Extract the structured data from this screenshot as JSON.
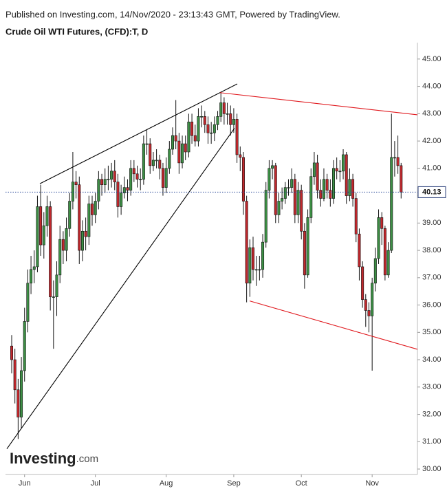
{
  "chart_data": {
    "type": "candlestick",
    "published": "Published on Investing.com, 14/Nov/2020 - 23:13:43 GMT, Powered by TradingView.",
    "title": "Crude Oil WTI Futures, (CFD):T, D",
    "logo_text": "Investing",
    "logo_suffix": ".com",
    "categories": [
      null,
      null,
      null,
      null,
      "Jun",
      null,
      null,
      null,
      null,
      null,
      null,
      null,
      null,
      null,
      null,
      null,
      null,
      null,
      null,
      null,
      null,
      null,
      null,
      null,
      null,
      null,
      "Jul",
      null,
      null,
      null,
      null,
      null,
      null,
      null,
      null,
      null,
      null,
      null,
      null,
      null,
      null,
      null,
      null,
      null,
      null,
      null,
      null,
      null,
      "Aug",
      null,
      null,
      null,
      null,
      null,
      null,
      null,
      null,
      null,
      null,
      null,
      null,
      null,
      null,
      null,
      null,
      null,
      null,
      null,
      null,
      "Sep",
      null,
      null,
      null,
      null,
      null,
      null,
      null,
      null,
      null,
      null,
      null,
      null,
      null,
      null,
      null,
      null,
      null,
      null,
      null,
      null,
      "Oct",
      null,
      null,
      null,
      null,
      null,
      null,
      null,
      null,
      null,
      null,
      null,
      null,
      null,
      null,
      null,
      null,
      null,
      null,
      null,
      null,
      null,
      "Nov",
      null,
      null,
      null,
      null,
      null,
      null,
      null,
      null,
      null
    ],
    "open": [
      34.5,
      34.0,
      32.9,
      31.9,
      33.6,
      35.4,
      36.8,
      37.3,
      37.4,
      39.6,
      38.2,
      38.9,
      39.6,
      36.3,
      36.3,
      37.1,
      38.4,
      38.0,
      38.8,
      39.8,
      40.5,
      40.4,
      38.0,
      38.7,
      38.5,
      39.7,
      39.3,
      39.8,
      40.6,
      40.4,
      40.6,
      40.6,
      40.9,
      40.5,
      39.6,
      40.1,
      40.3,
      40.2,
      41.0,
      40.8,
      40.6,
      40.6,
      41.9,
      41.9,
      41.1,
      41.3,
      41.3,
      41.0,
      40.3,
      41.0,
      41.7,
      42.2,
      42.0,
      41.2,
      41.9,
      41.6,
      42.7,
      42.2,
      42.0,
      42.9,
      42.9,
      42.6,
      42.3,
      42.3,
      42.6,
      42.9,
      43.4,
      43.0,
      43.0,
      42.6,
      42.8,
      41.5,
      41.4,
      39.8,
      36.8,
      38.1,
      37.3,
      37.3,
      37.3,
      38.3,
      40.2,
      41.0,
      41.1,
      39.3,
      39.8,
      39.9,
      40.3,
      40.3,
      40.6,
      39.3,
      40.2,
      38.7,
      37.1,
      39.2,
      40.7,
      41.2,
      40.2,
      39.9,
      40.6,
      40.2,
      39.9,
      41.0,
      40.9,
      40.9,
      41.5,
      40.0,
      40.6,
      39.9,
      38.6,
      37.4,
      36.2,
      35.8,
      35.6,
      36.8,
      37.7,
      39.2,
      38.8,
      37.1,
      38.0,
      41.4,
      41.4,
      41.1
    ],
    "high": [
      34.9,
      34.4,
      33.3,
      34.1,
      35.9,
      37.3,
      37.8,
      38.0,
      40.0,
      40.4,
      39.4,
      40.0,
      39.8,
      36.9,
      37.6,
      38.9,
      38.7,
      39.2,
      40.1,
      41.6,
      40.9,
      40.7,
      39.1,
      39.2,
      40.0,
      40.0,
      40.1,
      40.9,
      40.8,
      41.0,
      41.1,
      41.2,
      41.3,
      40.8,
      40.4,
      40.7,
      40.6,
      41.3,
      41.3,
      41.1,
      41.0,
      42.2,
      42.4,
      42.1,
      41.6,
      41.7,
      41.5,
      41.2,
      41.4,
      42.0,
      42.5,
      43.5,
      42.3,
      42.2,
      42.2,
      43.0,
      43.0,
      42.6,
      43.2,
      43.3,
      43.1,
      42.9,
      42.7,
      42.9,
      43.1,
      43.8,
      43.6,
      43.4,
      43.3,
      43.2,
      43.0,
      41.8,
      41.6,
      40.0,
      38.4,
      38.5,
      37.8,
      37.8,
      38.6,
      40.5,
      41.3,
      41.3,
      41.2,
      40.1,
      40.3,
      40.5,
      40.6,
      41.0,
      40.8,
      40.5,
      40.4,
      39.0,
      39.5,
      41.0,
      41.6,
      41.5,
      40.6,
      41.0,
      40.8,
      40.6,
      41.3,
      41.4,
      41.3,
      41.7,
      41.6,
      41.0,
      40.8,
      40.1,
      38.8,
      37.6,
      36.4,
      36.1,
      37.0,
      38.1,
      39.5,
      39.4,
      38.9,
      38.3,
      43.0,
      42.0,
      42.2,
      41.2
    ],
    "low": [
      33.5,
      32.4,
      31.1,
      31.5,
      33.2,
      35.0,
      36.4,
      36.8,
      37.2,
      37.8,
      37.7,
      38.5,
      35.8,
      34.4,
      35.6,
      36.8,
      37.5,
      37.6,
      38.5,
      39.5,
      39.9,
      37.5,
      37.6,
      38.0,
      38.2,
      38.9,
      39.0,
      39.5,
      40.0,
      40.1,
      40.2,
      40.3,
      40.2,
      39.2,
      39.3,
      39.9,
      39.8,
      40.0,
      40.5,
      40.3,
      40.2,
      40.4,
      41.5,
      40.8,
      40.9,
      41.0,
      40.6,
      40.0,
      40.1,
      40.8,
      41.5,
      41.7,
      40.8,
      41.0,
      41.3,
      41.4,
      41.9,
      41.8,
      41.8,
      42.5,
      42.3,
      41.9,
      41.9,
      42.0,
      42.4,
      42.7,
      42.6,
      42.6,
      42.2,
      42.3,
      41.2,
      40.9,
      39.3,
      36.1,
      36.3,
      36.9,
      36.7,
      36.9,
      37.0,
      38.1,
      39.9,
      40.6,
      39.0,
      39.0,
      39.5,
      39.7,
      40.0,
      40.1,
      39.0,
      39.0,
      38.4,
      36.6,
      37.0,
      39.0,
      40.4,
      39.9,
      39.6,
      39.8,
      39.9,
      39.6,
      39.7,
      40.6,
      40.5,
      40.6,
      39.7,
      39.8,
      39.6,
      38.3,
      36.9,
      35.9,
      35.2,
      35.0,
      33.6,
      36.5,
      37.5,
      38.2,
      36.9,
      37.0,
      37.9,
      40.7,
      40.8,
      39.9
    ],
    "close": [
      34.0,
      32.9,
      31.9,
      33.6,
      35.4,
      36.8,
      37.3,
      37.4,
      39.6,
      38.2,
      38.9,
      39.6,
      36.3,
      36.3,
      37.1,
      38.4,
      38.0,
      38.8,
      39.8,
      40.5,
      40.4,
      38.0,
      38.7,
      38.5,
      39.7,
      39.3,
      39.8,
      40.6,
      40.4,
      40.6,
      40.6,
      40.9,
      40.5,
      39.6,
      40.1,
      40.3,
      40.2,
      41.0,
      40.8,
      40.6,
      40.6,
      41.9,
      41.9,
      41.1,
      41.3,
      41.3,
      41.0,
      40.3,
      41.0,
      41.7,
      42.2,
      42.0,
      41.2,
      41.9,
      41.6,
      42.7,
      42.2,
      42.0,
      42.9,
      42.9,
      42.6,
      42.3,
      42.3,
      42.6,
      42.9,
      43.4,
      43.0,
      43.0,
      42.6,
      42.8,
      41.5,
      41.4,
      39.8,
      36.8,
      38.1,
      37.3,
      37.3,
      37.3,
      38.3,
      40.2,
      41.0,
      41.1,
      39.3,
      39.8,
      39.9,
      40.3,
      40.3,
      40.6,
      39.3,
      40.2,
      38.7,
      37.1,
      39.2,
      40.7,
      41.2,
      40.2,
      39.9,
      40.6,
      40.2,
      39.9,
      41.0,
      40.9,
      40.9,
      41.5,
      40.0,
      40.6,
      39.9,
      38.6,
      37.4,
      36.2,
      35.8,
      35.6,
      36.8,
      37.7,
      39.2,
      38.8,
      37.1,
      38.0,
      41.4,
      41.4,
      41.1,
      40.13
    ],
    "up_color": "#3d8f45",
    "down_color": "#c0282d",
    "trendlines": [
      {
        "color": "#000000",
        "x": [
          8.76,
          70.09
        ],
        "y": [
          40.44,
          44.09
        ]
      },
      {
        "color": "#000000",
        "x": [
          -1.5,
          69.23
        ],
        "y": [
          30.74,
          42.47
        ]
      },
      {
        "color": "#e0191e",
        "x": [
          64.74,
          126.07
        ],
        "y": [
          43.77,
          42.96
        ]
      },
      {
        "color": "#e0191e",
        "x": [
          73.93,
          126.07
        ],
        "y": [
          36.15,
          34.38
        ]
      }
    ],
    "ylim": [
      29.8,
      45.6
    ],
    "yticks": [
      {
        "value": 30,
        "label": "30.00"
      },
      {
        "value": 31,
        "label": "31.00"
      },
      {
        "value": 32,
        "label": "32.00"
      },
      {
        "value": 33,
        "label": "33.00"
      },
      {
        "value": 34,
        "label": "34.00"
      },
      {
        "value": 35,
        "label": "35.00"
      },
      {
        "value": 36,
        "label": "36.00"
      },
      {
        "value": 37,
        "label": "37.00"
      },
      {
        "value": 38,
        "label": "38.00"
      },
      {
        "value": 39,
        "label": "39.00"
      },
      {
        "value": 40,
        "label": "40.00"
      },
      {
        "value": 41,
        "label": "41.00"
      },
      {
        "value": 42,
        "label": "42.00"
      },
      {
        "value": 43,
        "label": "43.00"
      },
      {
        "value": 44,
        "label": "44.00"
      },
      {
        "value": 45,
        "label": "45.00"
      }
    ]
  }
}
